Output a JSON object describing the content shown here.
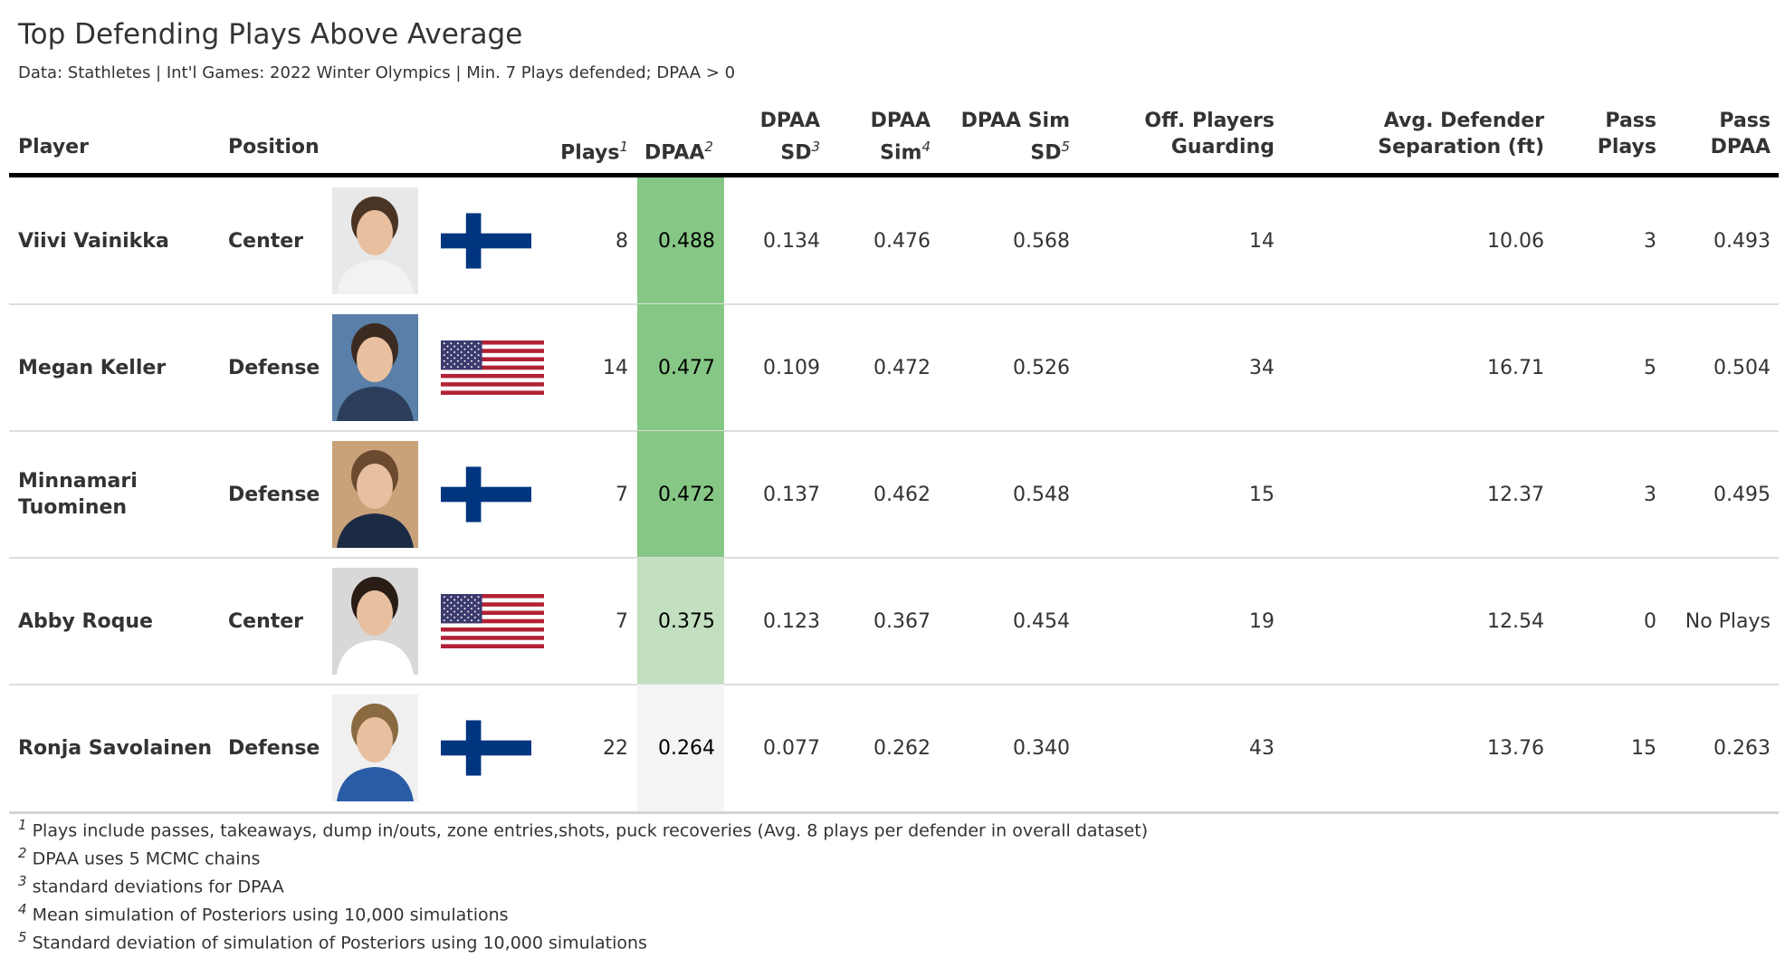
{
  "title": "Top Defending Plays Above Average",
  "subtitle": "Data: Stathletes | Int'l Games: 2022 Winter Olympics | Min. 7 Plays defended; DPAA > 0",
  "headers": {
    "player": "Player",
    "position": "Position",
    "plays": "Plays",
    "plays_sup": "1",
    "dpaa": "DPAA",
    "dpaa_sup": "2",
    "dpaa_sd_1": "DPAA",
    "dpaa_sd_2": "SD",
    "dpaa_sd_sup": "3",
    "dpaa_sim_1": "DPAA",
    "dpaa_sim_2": "Sim",
    "dpaa_sim_sup": "4",
    "sim_sd_1": "DPAA Sim",
    "sim_sd_2": "SD",
    "sim_sd_sup": "5",
    "guard_1": "Off. Players",
    "guard_2": "Guarding",
    "sep_1": "Avg. Defender",
    "sep_2": "Separation (ft)",
    "pass_plays_1": "Pass",
    "pass_plays_2": "Plays",
    "pass_dpaa_1": "Pass",
    "pass_dpaa_2": "DPAA"
  },
  "chart_data": {
    "type": "table",
    "columns": [
      "Player",
      "Position",
      "Plays",
      "DPAA",
      "DPAA SD",
      "DPAA Sim",
      "DPAA Sim SD",
      "Off. Players Guarding",
      "Avg. Defender Separation (ft)",
      "Pass Plays",
      "Pass DPAA"
    ],
    "rows": [
      {
        "player_1": "Viivi Vainikka",
        "player_2": "",
        "position": "Center",
        "country": "Finland",
        "plays": "8",
        "dpaa": "0.488",
        "dpaa_value": 0.488,
        "dpaa_sd": "0.134",
        "dpaa_sim": "0.476",
        "sim_sd": "0.568",
        "guarding": "14",
        "separation": "10.06",
        "pass_plays": "3",
        "pass_dpaa": "0.493",
        "dpaa_color": "#86c785"
      },
      {
        "player_1": "Megan Keller",
        "player_2": "",
        "position": "Defense",
        "country": "USA",
        "plays": "14",
        "dpaa": "0.477",
        "dpaa_value": 0.477,
        "dpaa_sd": "0.109",
        "dpaa_sim": "0.472",
        "sim_sd": "0.526",
        "guarding": "34",
        "separation": "16.71",
        "pass_plays": "5",
        "pass_dpaa": "0.504",
        "dpaa_color": "#86c785"
      },
      {
        "player_1": "Minnamari",
        "player_2": "Tuominen",
        "position": "Defense",
        "country": "Finland",
        "plays": "7",
        "dpaa": "0.472",
        "dpaa_value": 0.472,
        "dpaa_sd": "0.137",
        "dpaa_sim": "0.462",
        "sim_sd": "0.548",
        "guarding": "15",
        "separation": "12.37",
        "pass_plays": "3",
        "pass_dpaa": "0.495",
        "dpaa_color": "#86c785"
      },
      {
        "player_1": "Abby Roque",
        "player_2": "",
        "position": "Center",
        "country": "USA",
        "plays": "7",
        "dpaa": "0.375",
        "dpaa_value": 0.375,
        "dpaa_sd": "0.123",
        "dpaa_sim": "0.367",
        "sim_sd": "0.454",
        "guarding": "19",
        "separation": "12.54",
        "pass_plays": "0",
        "pass_dpaa": "No Plays",
        "dpaa_color": "#c2e0c0"
      },
      {
        "player_1": "Ronja Savolainen",
        "player_2": "",
        "position": "Defense",
        "country": "Finland",
        "plays": "22",
        "dpaa": "0.264",
        "dpaa_value": 0.264,
        "dpaa_sd": "0.077",
        "dpaa_sim": "0.262",
        "sim_sd": "0.340",
        "guarding": "43",
        "separation": "13.76",
        "pass_plays": "15",
        "pass_dpaa": "0.263",
        "dpaa_color": "#f4f4f4"
      }
    ]
  },
  "footnotes": [
    {
      "num": "1",
      "text": "Plays include passes, takeaways, dump in/outs, zone entries,shots, puck recoveries (Avg. 8 plays per defender in overall dataset)"
    },
    {
      "num": "2",
      "text": "DPAA uses 5 MCMC chains"
    },
    {
      "num": "3",
      "text": "standard deviations for DPAA"
    },
    {
      "num": "4",
      "text": "Mean simulation of Posteriors using 10,000 simulations"
    },
    {
      "num": "5",
      "text": "Standard deviation of simulation of Posteriors using 10,000 simulations"
    }
  ]
}
